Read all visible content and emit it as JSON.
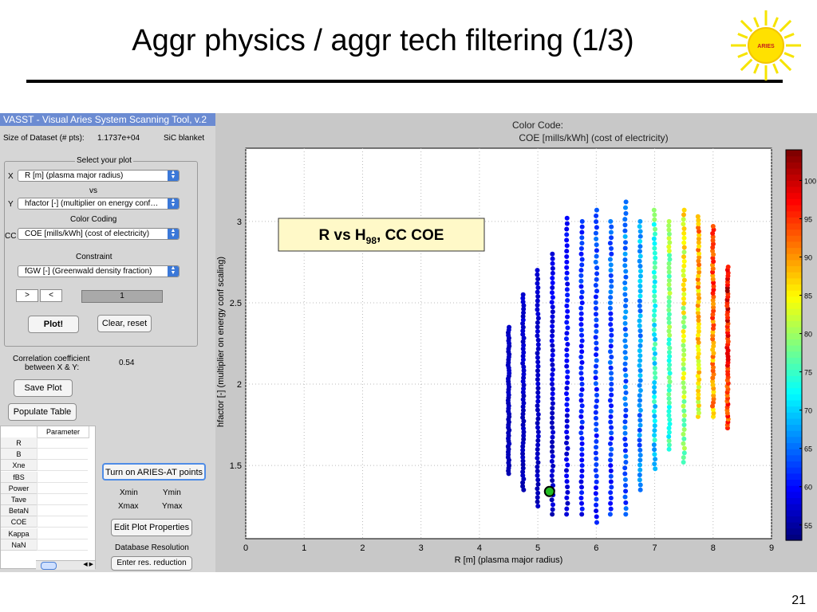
{
  "slide": {
    "title": "Aggr physics / aggr tech filtering (1/3)",
    "logo_text": "ARIES",
    "number": "21"
  },
  "app": {
    "title": "VASST - Visual Aries System Scanning Tool, v.2",
    "dataset_label": "Size of Dataset (# pts):",
    "dataset_value": "1.1737e+04",
    "blanket": "SiC blanket",
    "select_plot_title": "Select your plot",
    "x_label": "X",
    "x_value": "R [m] (plasma major radius)",
    "vs_label": "vs",
    "y_label": "Y",
    "y_value": "hfactor [-] (multiplier on energy conf…",
    "color_coding_label": "Color Coding",
    "cc_label": "CC",
    "cc_value": "COE [mills/kWh] (cost of electricity)",
    "constraint_label": "Constraint",
    "constraint_value": "fGW [-] (Greenwald density fraction)",
    "gt_button": ">",
    "lt_button": "<",
    "constraint_slider_value": "1",
    "plot_button": "Plot!",
    "clear_button": "Clear, reset",
    "correlation_label_1": "Correlation coefficient",
    "correlation_label_2": "between X & Y:",
    "correlation_value": "0.54",
    "save_plot_button": "Save Plot",
    "populate_table_button": "Populate Table",
    "table_header": "Parameter",
    "table_rows": [
      "R",
      "B",
      "Xne",
      "fBS",
      "Power",
      "Tave",
      "BetaN",
      "COE",
      "Kappa",
      "NaN"
    ],
    "aries_at_button": "Turn on ARIES-AT points",
    "xmin_label": "Xmin",
    "ymin_label": "Ymin",
    "xmax_label": "Xmax",
    "ymax_label": "Ymax",
    "edit_plot_button": "Edit Plot Properties",
    "db_resolution_label": "Database Resolution",
    "enter_res_button": "Enter res. reduction"
  },
  "colors": {
    "accent": "#4f8ce6",
    "titlebar": "#6b8bd2",
    "highlight_point": "#22bb22"
  },
  "chart_data": {
    "type": "scatter",
    "color_code_title": "Color Code:",
    "color_code_subtitle": "COE [mills/kWh] (cost of electricity)",
    "annotation": "R vs H",
    "annotation_sub": "98",
    "annotation_suffix": ", CC COE",
    "xlabel": "R [m] (plasma major radius)",
    "ylabel": "hfactor [-] (multiplier on energy conf scaling)",
    "xlim": [
      0,
      9
    ],
    "ylim": [
      1.05,
      3.45
    ],
    "xticks": [
      "0",
      "1",
      "2",
      "3",
      "4",
      "5",
      "6",
      "7",
      "8",
      "9"
    ],
    "yticks": [
      "1.5",
      "2",
      "2.5",
      "3"
    ],
    "grid": true,
    "colorbar_ticks": [
      "55",
      "60",
      "65",
      "70",
      "75",
      "80",
      "85",
      "90",
      "95",
      "100"
    ],
    "colorbar_range": [
      53,
      104
    ],
    "columns": [
      {
        "x": 4.5,
        "ymin": 1.45,
        "ymax": 2.35,
        "coe_min": 55,
        "coe_max": 57
      },
      {
        "x": 4.75,
        "ymin": 1.35,
        "ymax": 2.55,
        "coe_min": 55,
        "coe_max": 58
      },
      {
        "x": 5.0,
        "ymin": 1.25,
        "ymax": 2.7,
        "coe_min": 55,
        "coe_max": 58
      },
      {
        "x": 5.25,
        "ymin": 1.2,
        "ymax": 2.8,
        "coe_min": 55,
        "coe_max": 60
      },
      {
        "x": 5.5,
        "ymin": 1.2,
        "ymax": 3.02,
        "coe_min": 56,
        "coe_max": 62
      },
      {
        "x": 5.75,
        "ymin": 1.2,
        "ymax": 3.0,
        "coe_min": 57,
        "coe_max": 64
      },
      {
        "x": 6.0,
        "ymin": 1.15,
        "ymax": 3.07,
        "coe_min": 58,
        "coe_max": 66
      },
      {
        "x": 6.25,
        "ymin": 1.2,
        "ymax": 3.0,
        "coe_min": 58,
        "coe_max": 67
      },
      {
        "x": 6.5,
        "ymin": 1.2,
        "ymax": 3.12,
        "coe_min": 60,
        "coe_max": 69
      },
      {
        "x": 6.75,
        "ymin": 1.35,
        "ymax": 3.0,
        "coe_min": 61,
        "coe_max": 72
      },
      {
        "x": 7.0,
        "ymin": 1.48,
        "ymax": 3.07,
        "coe_min": 66,
        "coe_max": 80
      },
      {
        "x": 7.25,
        "ymin": 1.6,
        "ymax": 3.0,
        "coe_min": 70,
        "coe_max": 84
      },
      {
        "x": 7.5,
        "ymin": 1.52,
        "ymax": 3.07,
        "coe_min": 74,
        "coe_max": 90
      },
      {
        "x": 7.75,
        "ymin": 1.8,
        "ymax": 3.03,
        "coe_min": 80,
        "coe_max": 95
      },
      {
        "x": 8.0,
        "ymin": 1.8,
        "ymax": 2.97,
        "coe_min": 84,
        "coe_max": 100
      },
      {
        "x": 8.25,
        "ymin": 1.73,
        "ymax": 2.72,
        "coe_min": 90,
        "coe_max": 104
      }
    ],
    "highlight": {
      "x": 5.2,
      "y": 1.34
    }
  }
}
